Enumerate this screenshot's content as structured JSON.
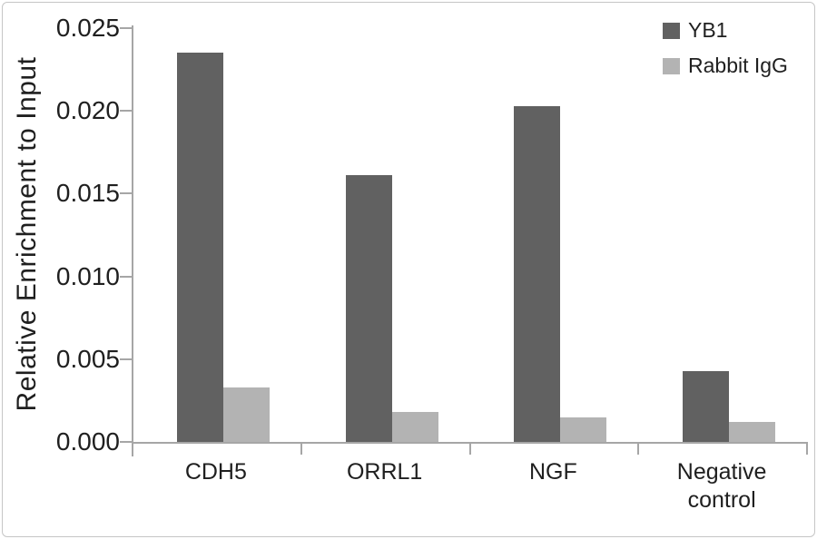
{
  "chart_data": {
    "type": "bar",
    "title": "",
    "xlabel": "",
    "ylabel": "Relative Enrichment to Input",
    "categories": [
      "CDH5",
      "ORRL1",
      "NGF",
      "Negative control"
    ],
    "series": [
      {
        "name": "YB1",
        "color": "#616161",
        "values": [
          0.0235,
          0.0161,
          0.0203,
          0.0043
        ]
      },
      {
        "name": "Rabbit IgG",
        "color": "#b3b3b3",
        "values": [
          0.0033,
          0.0018,
          0.0015,
          0.0012
        ]
      }
    ],
    "ylim": [
      0,
      0.025
    ],
    "ytick_step": 0.005,
    "ytick_labels": [
      "0.000",
      "0.005",
      "0.010",
      "0.015",
      "0.020",
      "0.025"
    ],
    "grid": false,
    "legend_position": "top-right"
  },
  "colors": {
    "series_dark": "#616161",
    "series_light": "#b3b3b3",
    "axis": "#a6a6a6",
    "text": "#1f1f1f",
    "frame_border": "#c6c6c6",
    "background": "#ffffff"
  }
}
